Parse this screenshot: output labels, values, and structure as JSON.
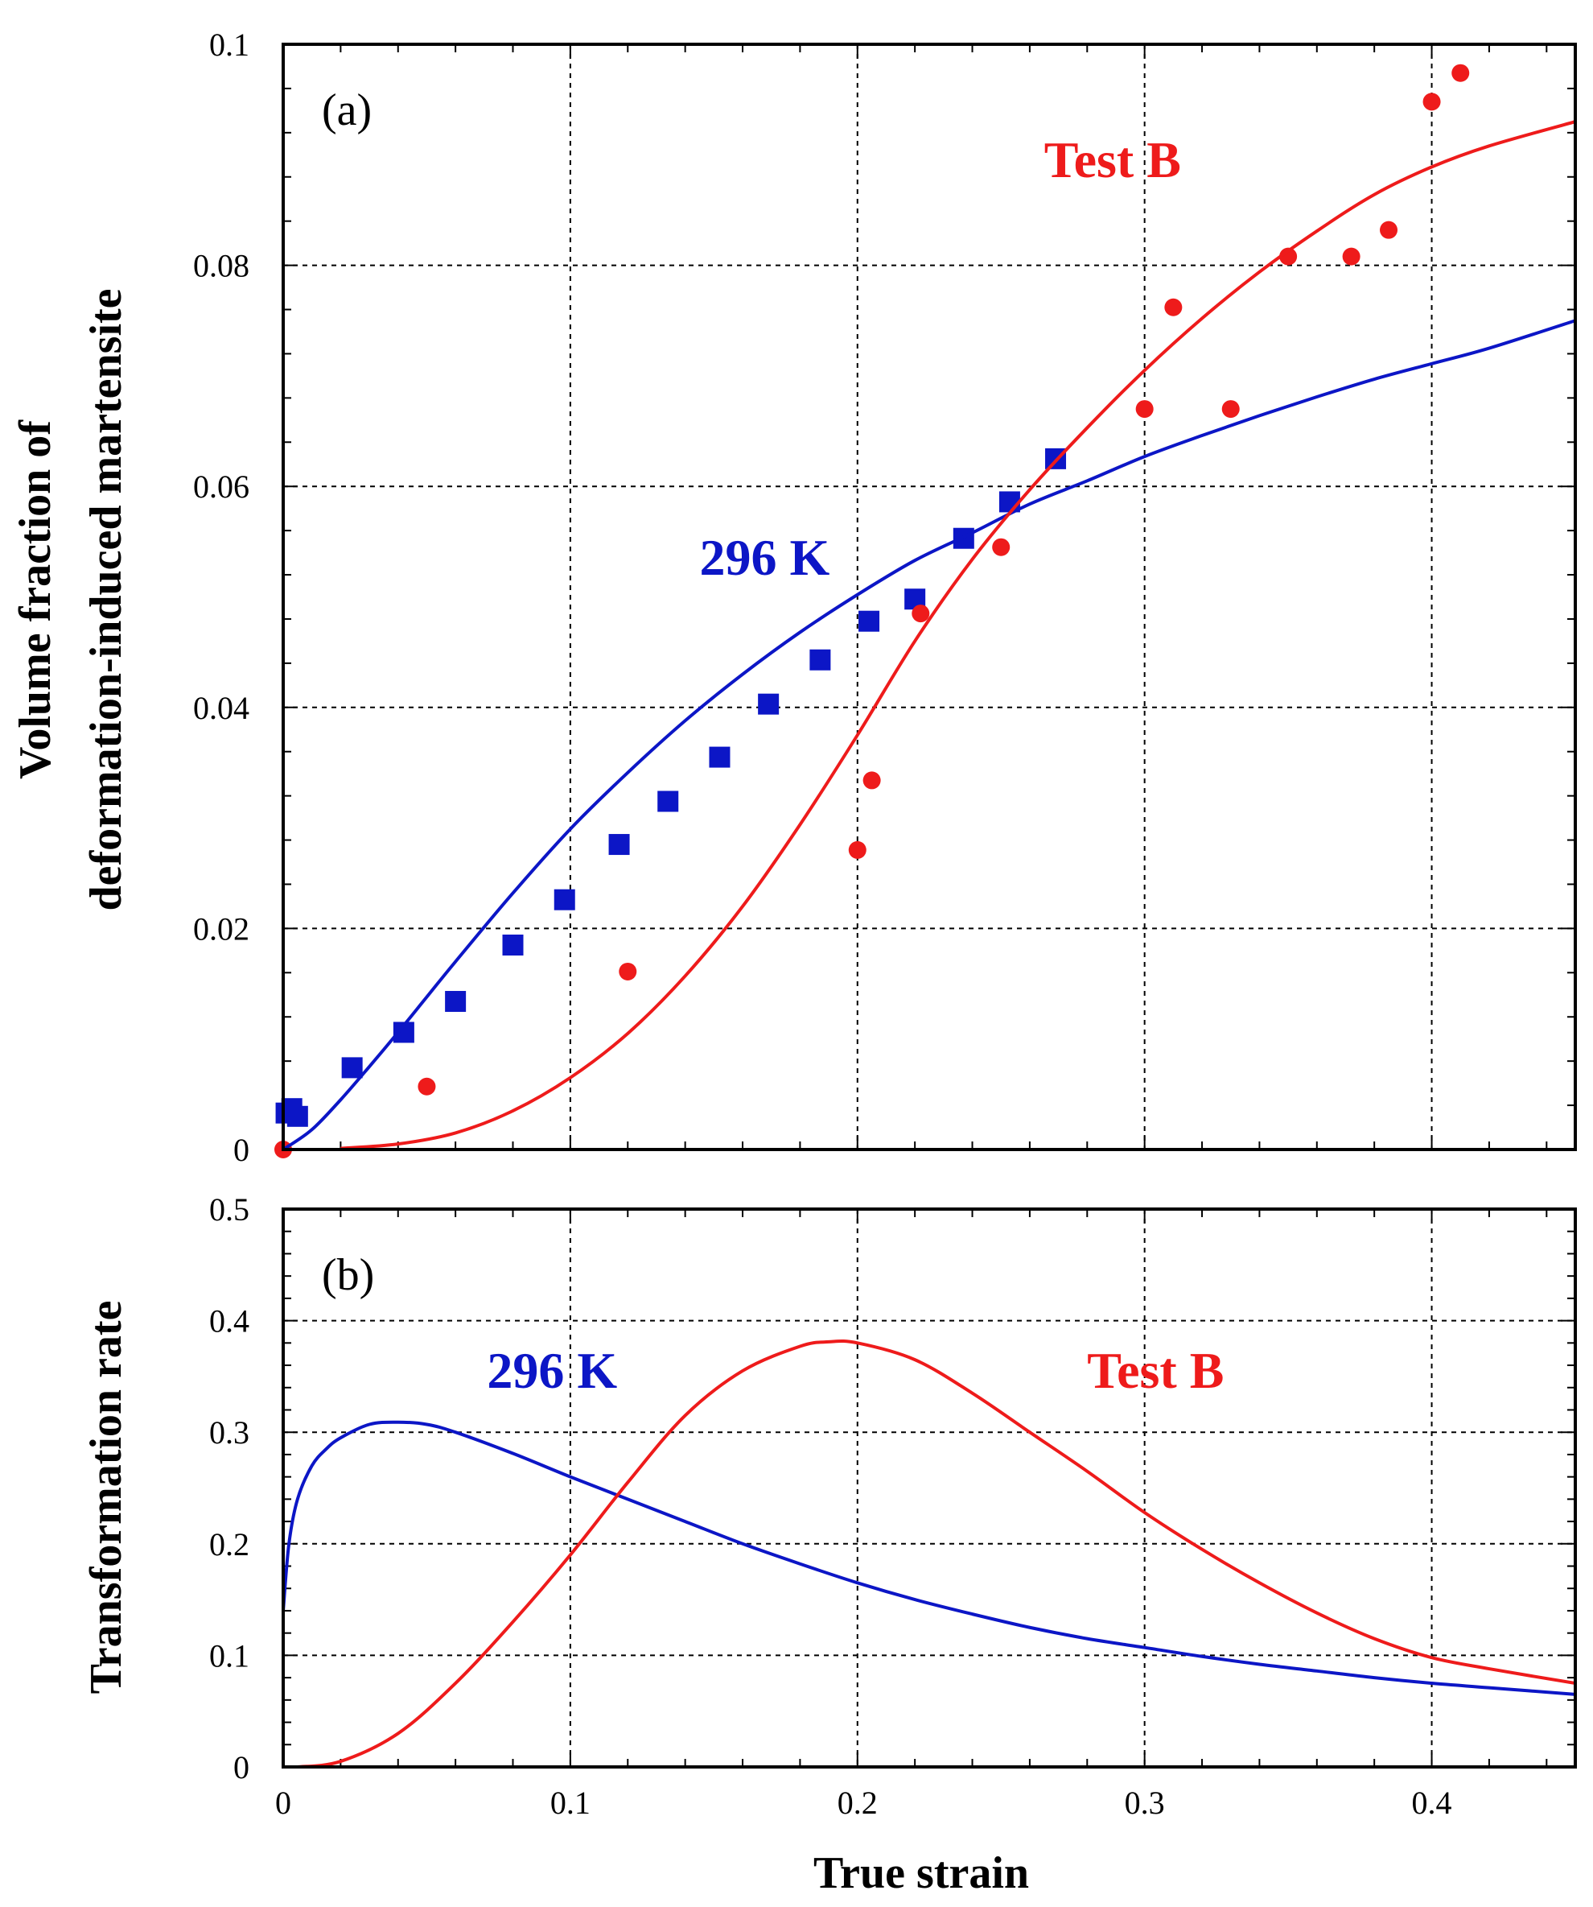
{
  "colors": {
    "blue": "#0c16c6",
    "red": "#ee1b1b",
    "black": "#000000"
  },
  "chart_data": [
    {
      "type": "scatter",
      "panel": "(a)",
      "ylabel_line1": "Volume fraction of",
      "ylabel_line2": "deformation-induced martensite",
      "xlim": [
        0,
        0.45
      ],
      "ylim": [
        0,
        0.1
      ],
      "yticks": [
        0,
        0.02,
        0.04,
        0.06,
        0.08,
        0.1
      ],
      "ytick_labels": [
        "0",
        "0.02",
        "0.04",
        "0.06",
        "0.08",
        "0.1"
      ],
      "xgrid": [
        0.1,
        0.2,
        0.3,
        0.4
      ],
      "ygrid": [
        0.02,
        0.04,
        0.06,
        0.08
      ],
      "annotations": [
        {
          "text": "296 K",
          "color": "blue",
          "at": [
            0.145,
            0.052
          ]
        },
        {
          "text": "Test B",
          "color": "red",
          "at": [
            0.265,
            0.088
          ]
        }
      ],
      "series": [
        {
          "name": "296 K data",
          "marker": "square",
          "color": "blue",
          "x": [
            0.001,
            0.003,
            0.005,
            0.024,
            0.042,
            0.06,
            0.08,
            0.098,
            0.117,
            0.134,
            0.152,
            0.169,
            0.187,
            0.204,
            0.22,
            0.237,
            0.253,
            0.269
          ],
          "y": [
            0.0033,
            0.0037,
            0.003,
            0.0074,
            0.0106,
            0.0134,
            0.0185,
            0.0226,
            0.0276,
            0.0315,
            0.0355,
            0.0403,
            0.0443,
            0.0478,
            0.0498,
            0.0553,
            0.0586,
            0.0625
          ]
        },
        {
          "name": "Test B data",
          "marker": "circle",
          "color": "red",
          "x": [
            0,
            0.05,
            0.12,
            0.2,
            0.205,
            0.222,
            0.25,
            0.3,
            0.31,
            0.33,
            0.35,
            0.372,
            0.385,
            0.4,
            0.41
          ],
          "y": [
            0,
            0.0057,
            0.0161,
            0.0271,
            0.0334,
            0.0485,
            0.0545,
            0.067,
            0.0762,
            0.067,
            0.0808,
            0.0808,
            0.0832,
            0.0948,
            0.0974
          ]
        },
        {
          "name": "296 K model",
          "marker": "line",
          "color": "blue",
          "x": [
            0,
            0.01,
            0.02,
            0.03,
            0.04,
            0.05,
            0.06,
            0.08,
            0.1,
            0.12,
            0.14,
            0.16,
            0.18,
            0.2,
            0.22,
            0.24,
            0.26,
            0.28,
            0.3,
            0.32,
            0.34,
            0.36,
            0.38,
            0.4,
            0.42,
            0.45
          ],
          "y": [
            0,
            0.0018,
            0.0045,
            0.0075,
            0.0106,
            0.0138,
            0.017,
            0.0232,
            0.029,
            0.0341,
            0.0388,
            0.043,
            0.0468,
            0.0502,
            0.0533,
            0.0558,
            0.0584,
            0.0605,
            0.0627,
            0.0646,
            0.0664,
            0.0681,
            0.0697,
            0.0711,
            0.0725,
            0.075
          ]
        },
        {
          "name": "Test B model",
          "marker": "line",
          "color": "red",
          "x": [
            0.02,
            0.04,
            0.06,
            0.08,
            0.1,
            0.12,
            0.14,
            0.16,
            0.18,
            0.2,
            0.22,
            0.24,
            0.26,
            0.28,
            0.3,
            0.32,
            0.34,
            0.36,
            0.38,
            0.4,
            0.42,
            0.45
          ],
          "y": [
            0.0001,
            0.0005,
            0.0015,
            0.0035,
            0.0065,
            0.0105,
            0.0157,
            0.022,
            0.0294,
            0.0375,
            0.046,
            0.0534,
            0.0597,
            0.0653,
            0.0705,
            0.0752,
            0.0794,
            0.0831,
            0.0864,
            0.0889,
            0.0908,
            0.093
          ]
        }
      ]
    },
    {
      "type": "line",
      "panel": "(b)",
      "ylabel": "Transformation rate",
      "xlabel": "True strain",
      "xlim": [
        0,
        0.45
      ],
      "ylim": [
        0,
        0.5
      ],
      "xticks": [
        0,
        0.1,
        0.2,
        0.3,
        0.4
      ],
      "xtick_labels": [
        "0",
        "0.1",
        "0.2",
        "0.3",
        "0.4"
      ],
      "yticks": [
        0,
        0.1,
        0.2,
        0.3,
        0.4,
        0.5
      ],
      "ytick_labels": [
        "0",
        "0.1",
        "0.2",
        "0.3",
        "0.4",
        "0.5"
      ],
      "xgrid": [
        0.1,
        0.2,
        0.3,
        0.4
      ],
      "ygrid": [
        0.1,
        0.2,
        0.3,
        0.4
      ],
      "annotations": [
        {
          "text": "296 K",
          "color": "blue",
          "at": [
            0.071,
            0.34
          ]
        },
        {
          "text": "Test B",
          "color": "red",
          "at": [
            0.28,
            0.34
          ]
        }
      ],
      "series": [
        {
          "name": "296 K",
          "color": "blue",
          "x": [
            0,
            0.002,
            0.005,
            0.01,
            0.015,
            0.02,
            0.03,
            0.04,
            0.05,
            0.06,
            0.08,
            0.1,
            0.12,
            0.14,
            0.16,
            0.18,
            0.2,
            0.22,
            0.24,
            0.26,
            0.28,
            0.3,
            0.32,
            0.34,
            0.36,
            0.38,
            0.4,
            0.42,
            0.45
          ],
          "y": [
            0.14,
            0.2,
            0.24,
            0.27,
            0.285,
            0.295,
            0.307,
            0.309,
            0.307,
            0.3,
            0.281,
            0.26,
            0.24,
            0.22,
            0.2,
            0.182,
            0.165,
            0.15,
            0.137,
            0.125,
            0.115,
            0.107,
            0.099,
            0.092,
            0.086,
            0.08,
            0.075,
            0.071,
            0.065
          ]
        },
        {
          "name": "Test B",
          "color": "red",
          "x": [
            0.005,
            0.02,
            0.04,
            0.06,
            0.08,
            0.1,
            0.12,
            0.14,
            0.16,
            0.18,
            0.19,
            0.2,
            0.22,
            0.24,
            0.26,
            0.28,
            0.3,
            0.32,
            0.34,
            0.36,
            0.38,
            0.4,
            0.42,
            0.45
          ],
          "y": [
            0,
            0.005,
            0.03,
            0.075,
            0.13,
            0.19,
            0.255,
            0.315,
            0.355,
            0.377,
            0.381,
            0.38,
            0.365,
            0.335,
            0.3,
            0.265,
            0.228,
            0.195,
            0.165,
            0.138,
            0.115,
            0.098,
            0.088,
            0.075
          ]
        }
      ]
    }
  ]
}
